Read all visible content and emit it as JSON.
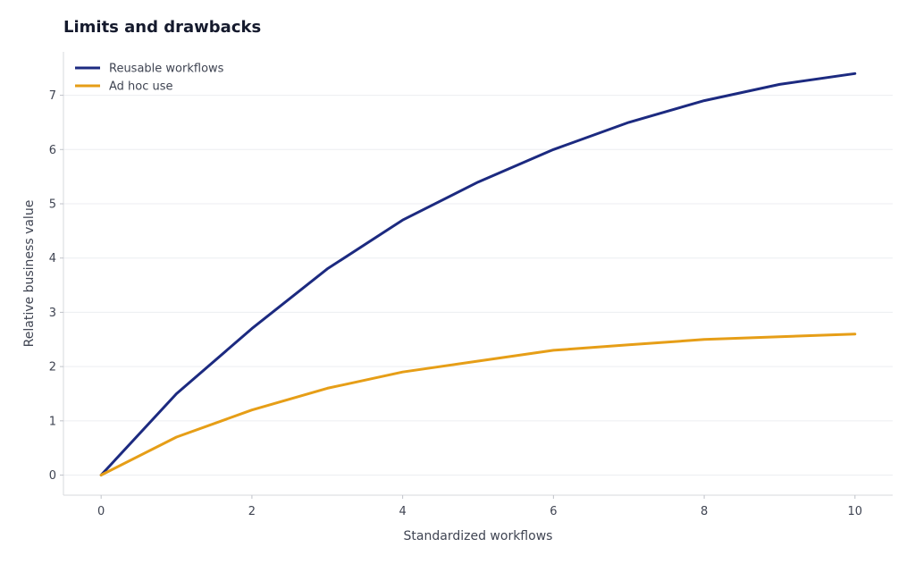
{
  "chart_data": {
    "type": "line",
    "title": "Limits and drawbacks",
    "xlabel": "Standardized workflows",
    "ylabel": "Relative business value",
    "x": [
      0,
      1,
      2,
      3,
      4,
      5,
      6,
      7,
      8,
      9,
      10
    ],
    "xticks": [
      0,
      2,
      4,
      6,
      8,
      10
    ],
    "yticks": [
      0,
      1,
      2,
      3,
      4,
      5,
      6,
      7
    ],
    "xlim": [
      -0.5,
      10.5
    ],
    "ylim": [
      -0.37,
      7.8
    ],
    "grid": "horizontal",
    "legend_position": "top-left",
    "series": [
      {
        "name": "Reusable workflows",
        "color": "#1c2a80",
        "values": [
          0,
          1.5,
          2.7,
          3.8,
          4.7,
          5.4,
          6.0,
          6.5,
          6.9,
          7.2,
          7.4
        ]
      },
      {
        "name": "Ad hoc use",
        "color": "#e69e17",
        "values": [
          0,
          0.7,
          1.2,
          1.6,
          1.9,
          2.1,
          2.3,
          2.4,
          2.5,
          2.55,
          2.6
        ]
      }
    ]
  }
}
